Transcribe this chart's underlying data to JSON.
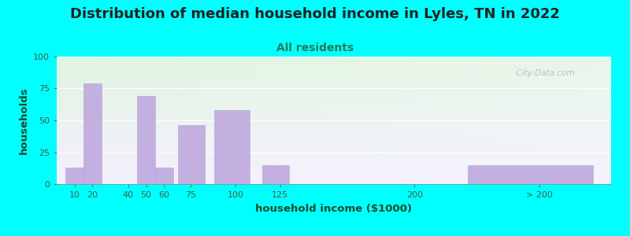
{
  "title": "Distribution of median household income in Lyles, TN in 2022",
  "subtitle": "All residents",
  "xlabel": "household income ($1000)",
  "ylabel": "households",
  "title_fontsize": 13,
  "subtitle_fontsize": 10,
  "label_fontsize": 9.5,
  "background_outer": "#00FFFF",
  "bar_color": "#c4b0e0",
  "bar_edgecolor": "#b0a0d0",
  "watermark": "  City-Data.com",
  "bar_lefts": [
    5,
    15,
    45,
    55,
    68,
    88,
    115,
    230
  ],
  "bar_heights": [
    13,
    79,
    69,
    13,
    46,
    58,
    15,
    15
  ],
  "bar_widths": [
    10,
    10,
    10,
    10,
    15,
    20,
    15,
    70
  ],
  "tick_positions": [
    10,
    20,
    40,
    50,
    60,
    75,
    100,
    125,
    200,
    270
  ],
  "tick_labels": [
    "10",
    "20",
    "40",
    "50",
    "60",
    "75",
    "100",
    "125",
    "200",
    "> 200"
  ],
  "xlim": [
    0,
    310
  ],
  "ylim": [
    0,
    100
  ],
  "yticks": [
    0,
    25,
    50,
    75,
    100
  ]
}
